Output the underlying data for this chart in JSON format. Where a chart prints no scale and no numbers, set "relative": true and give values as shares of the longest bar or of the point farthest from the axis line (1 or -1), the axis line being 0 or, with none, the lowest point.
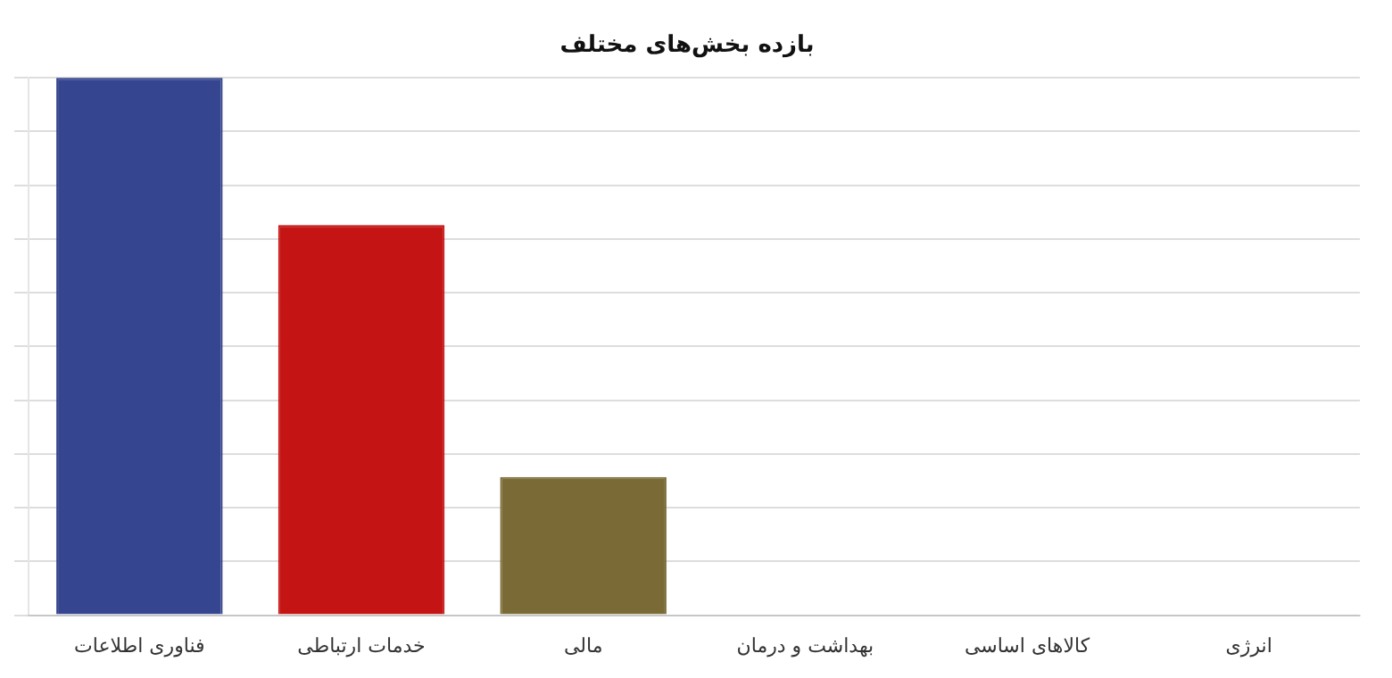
{
  "chart_data": {
    "type": "bar",
    "title": "بازده بخش‌های مختلف",
    "categories": [
      "فناوری اطلاعات",
      "خدمات ارتباطی",
      "مالی",
      "بهداشت و درمان",
      "کالاهای اساسی",
      "انرژی"
    ],
    "values": [
      1,
      0.726,
      0.257,
      null,
      null,
      null
    ],
    "colors": [
      "#36458f",
      "#c41414",
      "#7a6b36",
      "#7a6b36",
      "#7a6b36",
      "#7a6b36"
    ],
    "relative": true,
    "grid": "y",
    "legend": false
  }
}
